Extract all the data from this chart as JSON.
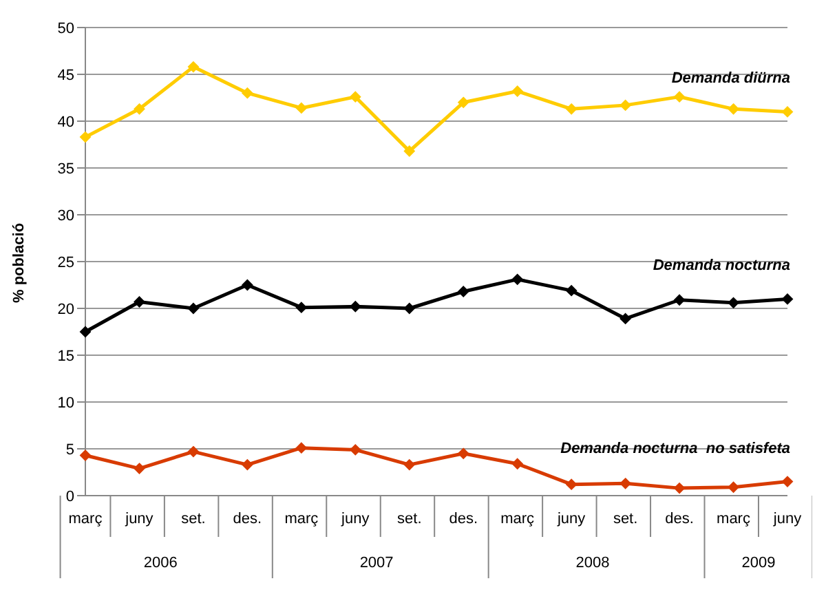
{
  "chart_data": {
    "type": "line",
    "ylabel": "% població",
    "categories": [
      "març",
      "juny",
      "set.",
      "des.",
      "març",
      "juny",
      "set.",
      "des.",
      "març",
      "juny",
      "set.",
      "des.",
      "març",
      "juny"
    ],
    "series": [
      {
        "name": "Demanda diürna",
        "color": "#ffcc00",
        "values": [
          38.3,
          41.3,
          45.8,
          43.0,
          41.4,
          42.6,
          36.8,
          42.0,
          43.2,
          41.3,
          41.7,
          42.6,
          41.3,
          41.0
        ]
      },
      {
        "name": "Demanda nocturna",
        "color": "#000000",
        "values": [
          17.5,
          20.7,
          20.0,
          22.5,
          20.1,
          20.2,
          20.0,
          21.8,
          23.1,
          21.9,
          18.9,
          20.9,
          20.6,
          21.0
        ]
      },
      {
        "name": "Demanda nocturna  no satisfeta",
        "color": "#d83b01",
        "values": [
          4.3,
          2.9,
          4.7,
          3.3,
          5.1,
          4.9,
          3.3,
          4.5,
          3.4,
          1.2,
          1.3,
          0.8,
          0.9,
          1.5
        ]
      }
    ],
    "ylim": [
      0,
      50
    ],
    "yticks": [
      0,
      5,
      10,
      15,
      20,
      25,
      30,
      35,
      40,
      45,
      50
    ],
    "grid": "y",
    "marker": "diamond",
    "annotations": [
      "2006",
      "2007",
      "2008",
      "2009"
    ]
  }
}
